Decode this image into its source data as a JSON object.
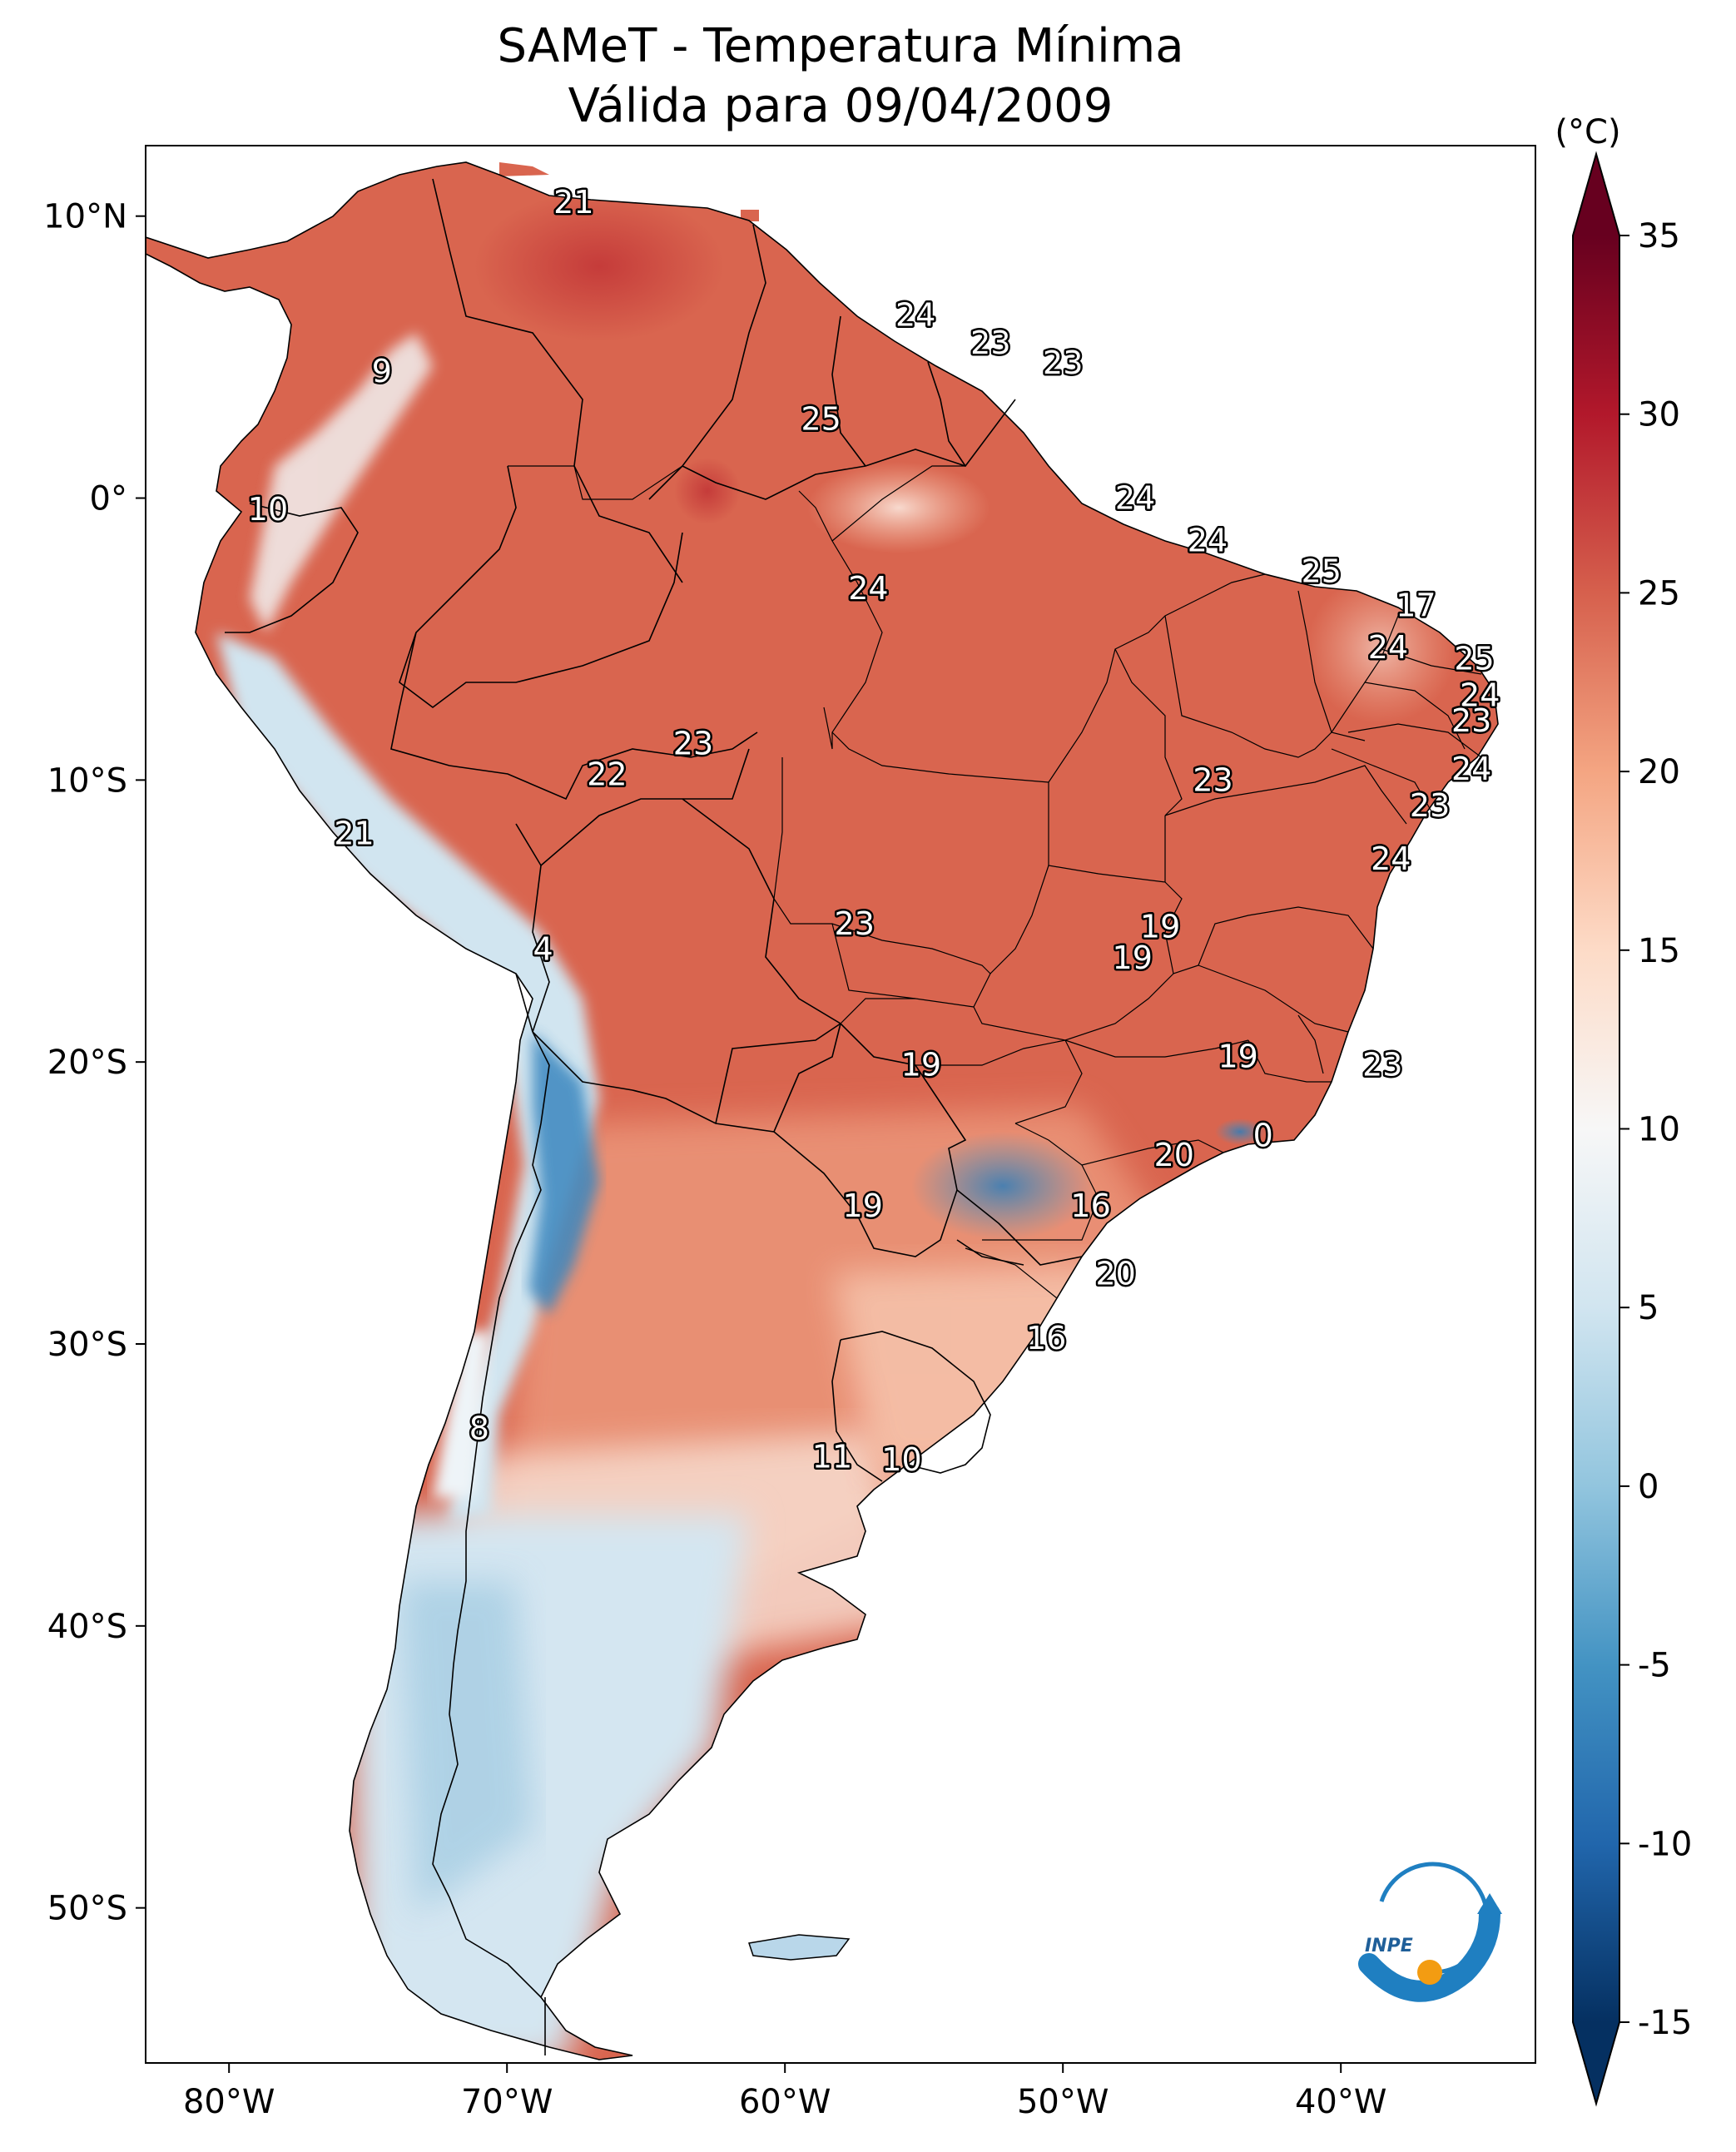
{
  "title": {
    "line1": "SAMeT - Temperatura Mínima",
    "line2": "Válida para 09/04/2009"
  },
  "map": {
    "region": "South America",
    "extent": {
      "lon": [
        -83,
        -33
      ],
      "lat": [
        -55.5,
        12.5
      ]
    },
    "lon_ticks": [
      "80°W",
      "70°W",
      "60°W",
      "50°W",
      "40°W"
    ],
    "lat_ticks": [
      "10°N",
      "0°",
      "10°S",
      "20°S",
      "30°S",
      "40°S",
      "50°S"
    ],
    "colormap": "RdBu_r",
    "labels": [
      {
        "lon": -67.6,
        "lat": 10.5,
        "text": "21"
      },
      {
        "lon": -74.5,
        "lat": 4.5,
        "text": "9"
      },
      {
        "lon": -78.6,
        "lat": -0.4,
        "text": "10"
      },
      {
        "lon": -55.3,
        "lat": 6.5,
        "text": "24"
      },
      {
        "lon": -52.6,
        "lat": 5.5,
        "text": "23"
      },
      {
        "lon": -50.0,
        "lat": 4.8,
        "text": "23"
      },
      {
        "lon": -58.7,
        "lat": 2.8,
        "text": "25"
      },
      {
        "lon": -47.4,
        "lat": 0.0,
        "text": "24"
      },
      {
        "lon": -44.8,
        "lat": -1.5,
        "text": "24"
      },
      {
        "lon": -40.7,
        "lat": -2.6,
        "text": "25"
      },
      {
        "lon": -57.0,
        "lat": -3.2,
        "text": "24"
      },
      {
        "lon": -37.3,
        "lat": -3.8,
        "text": "17"
      },
      {
        "lon": -38.3,
        "lat": -5.3,
        "text": "24"
      },
      {
        "lon": -35.2,
        "lat": -5.7,
        "text": "25"
      },
      {
        "lon": -35.0,
        "lat": -7.0,
        "text": "24"
      },
      {
        "lon": -35.3,
        "lat": -7.9,
        "text": "23"
      },
      {
        "lon": -35.3,
        "lat": -9.6,
        "text": "24"
      },
      {
        "lon": -36.8,
        "lat": -10.9,
        "text": "23"
      },
      {
        "lon": -63.3,
        "lat": -8.7,
        "text": "23"
      },
      {
        "lon": -66.4,
        "lat": -9.8,
        "text": "22"
      },
      {
        "lon": -44.6,
        "lat": -10.0,
        "text": "23"
      },
      {
        "lon": -38.2,
        "lat": -12.8,
        "text": "24"
      },
      {
        "lon": -75.5,
        "lat": -11.9,
        "text": "21"
      },
      {
        "lon": -57.5,
        "lat": -15.1,
        "text": "23"
      },
      {
        "lon": -46.5,
        "lat": -15.2,
        "text": "19"
      },
      {
        "lon": -47.5,
        "lat": -16.3,
        "text": "19"
      },
      {
        "lon": -68.7,
        "lat": -16.0,
        "text": "4"
      },
      {
        "lon": -55.1,
        "lat": -20.1,
        "text": "19"
      },
      {
        "lon": -43.7,
        "lat": -19.8,
        "text": "19"
      },
      {
        "lon": -38.5,
        "lat": -20.1,
        "text": "23"
      },
      {
        "lon": -42.8,
        "lat": -22.6,
        "text": "0"
      },
      {
        "lon": -46.0,
        "lat": -23.3,
        "text": "20"
      },
      {
        "lon": -57.2,
        "lat": -25.1,
        "text": "19"
      },
      {
        "lon": -49.0,
        "lat": -25.1,
        "text": "16"
      },
      {
        "lon": -48.1,
        "lat": -27.5,
        "text": "20"
      },
      {
        "lon": -50.6,
        "lat": -29.8,
        "text": "16"
      },
      {
        "lon": -71.0,
        "lat": -33.0,
        "text": "8"
      },
      {
        "lon": -58.3,
        "lat": -34.0,
        "text": "11"
      },
      {
        "lon": -55.8,
        "lat": -34.1,
        "text": "10"
      }
    ]
  },
  "colorbar": {
    "unit": "(°C)",
    "min": -15,
    "max": 35,
    "ticks": [
      "35",
      "30",
      "25",
      "20",
      "15",
      "10",
      "5",
      "0",
      "-5",
      "-10",
      "-15"
    ],
    "stops": [
      "#053061",
      "#2166ac",
      "#4393c3",
      "#92c5de",
      "#d1e5f0",
      "#f7f7f7",
      "#fddbc7",
      "#f4a582",
      "#d6604d",
      "#b2182b",
      "#67001f"
    ]
  },
  "logo": {
    "text": "INPE",
    "colors": {
      "blue": "#1f7fc1",
      "orange": "#f39c12"
    }
  }
}
